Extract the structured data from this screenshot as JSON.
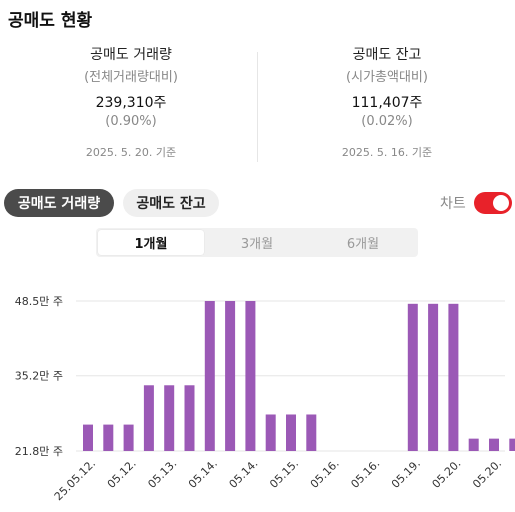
{
  "header": {
    "title": "공매도 현황"
  },
  "stats": {
    "volume": {
      "label": "공매도 거래량",
      "sub": "(전체거래량대비)",
      "value": "239,310주",
      "pct": "(0.90%)",
      "date": "2025. 5. 20. 기준"
    },
    "balance": {
      "label": "공매도 잔고",
      "sub": "(시가총액대비)",
      "value": "111,407주",
      "pct": "(0.02%)",
      "date": "2025. 5. 16. 기준"
    }
  },
  "tabs": {
    "volume_label": "공매도 거래량",
    "balance_label": "공매도 잔고",
    "active": "volume"
  },
  "toggle": {
    "label": "차트",
    "on": true
  },
  "periods": {
    "items": [
      "1개월",
      "3개월",
      "6개월"
    ],
    "selected": 0
  },
  "colors": {
    "bar": "#9b59b6",
    "toggle_on": "#e8222a",
    "active_tab": "#4b4b4b"
  },
  "chart_data": {
    "type": "bar",
    "ytick_labels": [
      "48.5만 주",
      "35.2만 주",
      "21.8만 주"
    ],
    "yticks": [
      485000,
      352000,
      218000
    ],
    "ylim": [
      218000,
      485000
    ],
    "grid": true,
    "xtick_labels": [
      "25.05.12.",
      "05.12.",
      "05.13.",
      "05.14.",
      "05.14.",
      "05.15.",
      "05.16.",
      "05.16.",
      "05.19.",
      "05.20.",
      "05.20."
    ],
    "values": [
      265000,
      265000,
      265000,
      335000,
      335000,
      335000,
      485000,
      485000,
      485000,
      283000,
      283000,
      283000,
      null,
      null,
      null,
      null,
      480000,
      480000,
      480000,
      240000,
      240000,
      240000
    ]
  }
}
